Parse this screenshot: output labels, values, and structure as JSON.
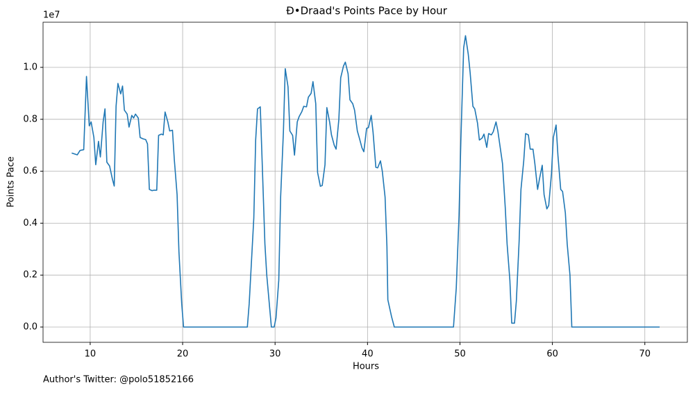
{
  "chart_data": {
    "type": "line",
    "title": "Đ•Draad's Points Pace by Hour",
    "x_label": "Hours",
    "y_label": "Points Pace",
    "y_offset_label": "1e7",
    "footnote": "Author's Twitter: @polo51852166",
    "color": "#1f77b4",
    "grid": true,
    "xlim": [
      4.9,
      74.6
    ],
    "ylim": [
      -588000,
      11738000
    ],
    "xticks": [
      10,
      20,
      30,
      40,
      50,
      60,
      70
    ],
    "yticks": [
      {
        "value": 0,
        "label": "0.0"
      },
      {
        "value": 2000000,
        "label": "0.2"
      },
      {
        "value": 4000000,
        "label": "0.4"
      },
      {
        "value": 6000000,
        "label": "0.6"
      },
      {
        "value": 8000000,
        "label": "0.8"
      },
      {
        "value": 10000000,
        "label": "1.0"
      }
    ],
    "x": [
      8.0,
      8.6,
      8.9,
      9.3,
      9.6,
      9.9,
      10.1,
      10.4,
      10.6,
      10.9,
      11.1,
      11.4,
      11.6,
      11.8,
      12.1,
      12.4,
      12.6,
      12.8,
      13.0,
      13.3,
      13.5,
      13.7,
      14.0,
      14.2,
      14.5,
      14.7,
      14.9,
      15.2,
      15.4,
      15.7,
      16.0,
      16.2,
      16.4,
      16.7,
      16.9,
      17.2,
      17.4,
      17.7,
      17.9,
      18.1,
      18.4,
      18.6,
      18.9,
      19.1,
      19.4,
      19.6,
      19.9,
      20.1,
      27.0,
      27.2,
      27.7,
      27.9,
      28.1,
      28.4,
      28.6,
      28.9,
      29.1,
      29.6,
      29.9,
      30.1,
      30.4,
      30.6,
      30.9,
      31.1,
      31.4,
      31.6,
      31.9,
      32.1,
      32.4,
      32.6,
      32.9,
      33.1,
      33.4,
      33.6,
      33.9,
      34.1,
      34.4,
      34.6,
      34.9,
      35.1,
      35.4,
      35.6,
      35.9,
      36.1,
      36.4,
      36.6,
      36.9,
      37.1,
      37.4,
      37.6,
      37.9,
      38.1,
      38.4,
      38.6,
      38.9,
      39.1,
      39.4,
      39.6,
      39.9,
      40.1,
      40.4,
      40.6,
      40.9,
      41.1,
      41.4,
      41.6,
      41.9,
      42.1,
      42.2,
      42.6,
      42.9,
      49.3,
      49.6,
      49.9,
      50.1,
      50.4,
      50.6,
      50.9,
      51.1,
      51.4,
      51.6,
      51.9,
      52.1,
      52.4,
      52.6,
      52.9,
      53.1,
      53.4,
      53.6,
      53.9,
      54.1,
      54.4,
      54.6,
      54.9,
      55.1,
      55.4,
      55.6,
      55.9,
      56.1,
      56.4,
      56.6,
      56.9,
      57.1,
      57.4,
      57.6,
      57.9,
      58.1,
      58.4,
      58.6,
      58.9,
      59.1,
      59.4,
      59.6,
      59.9,
      60.1,
      60.4,
      60.6,
      60.9,
      61.1,
      61.4,
      61.6,
      61.9,
      62.1,
      71.6
    ],
    "values": [
      6700000,
      6630000,
      6800000,
      6830000,
      9650000,
      7750000,
      7900000,
      7300000,
      6250000,
      7150000,
      6550000,
      7900000,
      8400000,
      6350000,
      6200000,
      5700000,
      5430000,
      8500000,
      9380000,
      8980000,
      9280000,
      8350000,
      8200000,
      7700000,
      8150000,
      8050000,
      8200000,
      8050000,
      7300000,
      7250000,
      7220000,
      7050000,
      5300000,
      5250000,
      5270000,
      5270000,
      7380000,
      7430000,
      7400000,
      8280000,
      7900000,
      7550000,
      7580000,
      6450000,
      5100000,
      2900000,
      900000,
      0,
      0,
      900000,
      4200000,
      7200000,
      8400000,
      8480000,
      6400000,
      3200000,
      2000000,
      0,
      0,
      350000,
      1800000,
      5000000,
      7500000,
      9950000,
      9250000,
      7550000,
      7380000,
      6620000,
      7900000,
      8100000,
      8300000,
      8500000,
      8480000,
      8850000,
      9000000,
      9450000,
      8600000,
      5950000,
      5420000,
      5450000,
      6250000,
      8450000,
      7900000,
      7400000,
      7000000,
      6850000,
      8000000,
      9600000,
      10050000,
      10200000,
      9750000,
      8750000,
      8600000,
      8350000,
      7550000,
      7300000,
      6900000,
      6750000,
      7650000,
      7680000,
      8150000,
      7500000,
      6150000,
      6130000,
      6400000,
      6000000,
      5000000,
      3100000,
      1050000,
      400000,
      0,
      0,
      1500000,
      4300000,
      7200000,
      10750000,
      11220000,
      10500000,
      9800000,
      8500000,
      8400000,
      7850000,
      7200000,
      7280000,
      7430000,
      6920000,
      7450000,
      7400000,
      7520000,
      7900000,
      7550000,
      6800000,
      6300000,
      4600000,
      3200000,
      1800000,
      150000,
      150000,
      1000000,
      3300000,
      5300000,
      6400000,
      7450000,
      7400000,
      6850000,
      6850000,
      6300000,
      5300000,
      5700000,
      6230000,
      5100000,
      4550000,
      4680000,
      5900000,
      7300000,
      7780000,
      6600000,
      5300000,
      5220000,
      4400000,
      3200000,
      2000000,
      0,
      0
    ]
  }
}
